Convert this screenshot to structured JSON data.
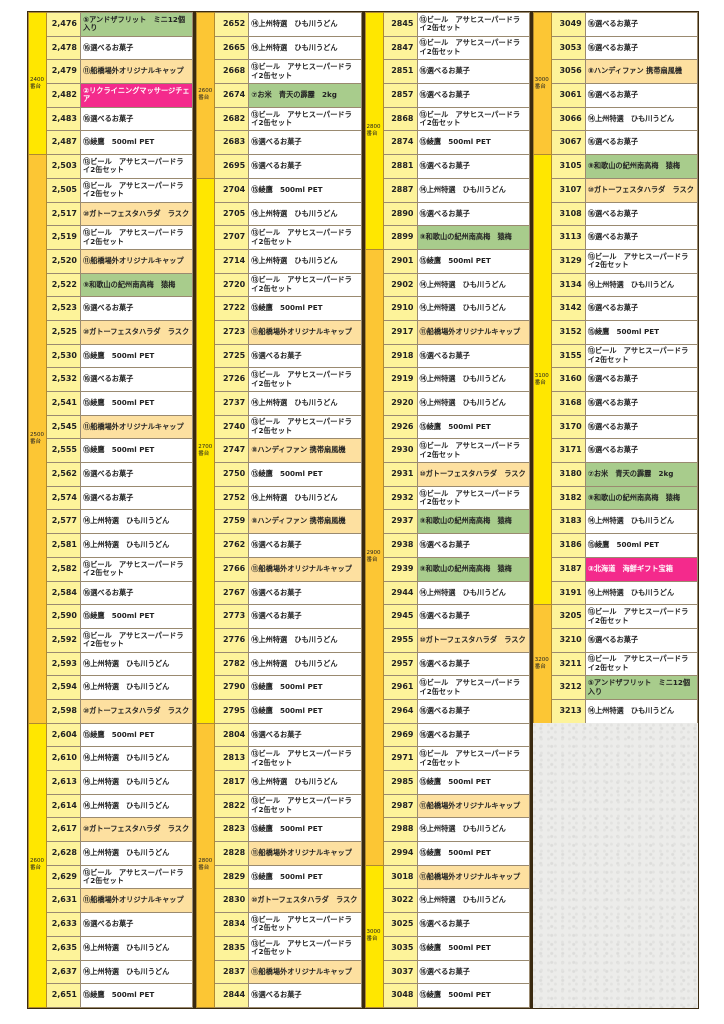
{
  "colors": {
    "white": "#ffffff",
    "orange": "#fde0a0",
    "green": "#a8cc8c",
    "pink": "#f42a8c",
    "group_yellow": "#ffe700",
    "group_orange": "#fcc634",
    "number_cell": "#fdf39a"
  },
  "prizes": {
    "F": {
      "text": "⑤アンドザフリット　ミニ12個入り",
      "color": "green"
    },
    "K": {
      "text": "⑯選べるお菓子",
      "color": "white"
    },
    "C": {
      "text": "⑪船橋場外オリジナルキャップ",
      "color": "orange"
    },
    "M": {
      "text": "②リクライニングマッサージチェア",
      "color": "pink"
    },
    "A": {
      "text": "⑮綾鷹　500ml PET",
      "color": "white"
    },
    "B": {
      "text": "⑬ビール　アサヒスーパードライ2缶セット",
      "color": "white"
    },
    "G": {
      "text": "⑩ガトーフェスタハラダ　ラスク",
      "color": "orange"
    },
    "W": {
      "text": "⑨和歌山の紀州南高梅　猿梅",
      "color": "green"
    },
    "U": {
      "text": "⑭上州特選　ひも川うどん",
      "color": "white"
    },
    "H": {
      "text": "⑧ハンディファン 携帯扇風機",
      "color": "orange"
    },
    "R": {
      "text": "⑦お米　青天の霹靂　2kg",
      "color": "green"
    },
    "S": {
      "text": "③北海道　海鮮ギフト宝箱",
      "color": "pink"
    }
  },
  "columns": [
    {
      "groups": [
        {
          "label": "2400番台",
          "color": "group_yellow",
          "rows": [
            [
              "2,476",
              "F"
            ],
            [
              "2,478",
              "K"
            ],
            [
              "2,479",
              "C"
            ],
            [
              "2,482",
              "M"
            ],
            [
              "2,483",
              "K"
            ],
            [
              "2,487",
              "A"
            ]
          ]
        },
        {
          "label": "2500番台",
          "color": "group_orange",
          "rows": [
            [
              "2,503",
              "B"
            ],
            [
              "2,505",
              "B"
            ],
            [
              "2,517",
              "G"
            ],
            [
              "2,519",
              "B"
            ],
            [
              "2,520",
              "C"
            ],
            [
              "2,522",
              "W"
            ],
            [
              "2,523",
              "K"
            ],
            [
              "2,525",
              "G"
            ],
            [
              "2,530",
              "A"
            ],
            [
              "2,532",
              "K"
            ],
            [
              "2,541",
              "A"
            ],
            [
              "2,545",
              "C"
            ],
            [
              "2,555",
              "A"
            ],
            [
              "2,562",
              "K"
            ],
            [
              "2,574",
              "K"
            ],
            [
              "2,577",
              "U"
            ],
            [
              "2,581",
              "U"
            ],
            [
              "2,582",
              "B"
            ],
            [
              "2,584",
              "K"
            ],
            [
              "2,590",
              "A"
            ],
            [
              "2,592",
              "B"
            ],
            [
              "2,593",
              "U"
            ],
            [
              "2,594",
              "U"
            ],
            [
              "2,598",
              "G"
            ]
          ]
        },
        {
          "label": "2600番台",
          "color": "group_yellow",
          "rows": [
            [
              "2,604",
              "A"
            ],
            [
              "2,610",
              "U"
            ],
            [
              "2,613",
              "U"
            ],
            [
              "2,614",
              "U"
            ],
            [
              "2,617",
              "G"
            ],
            [
              "2,628",
              "U"
            ],
            [
              "2,629",
              "B"
            ],
            [
              "2,631",
              "C"
            ],
            [
              "2,633",
              "K"
            ],
            [
              "2,635",
              "U"
            ],
            [
              "2,637",
              "U"
            ],
            [
              "2,651",
              "A"
            ]
          ]
        }
      ]
    },
    {
      "groups": [
        {
          "label": "2600番台",
          "color": "group_orange",
          "rows": [
            [
              "2652",
              "U"
            ],
            [
              "2665",
              "U"
            ],
            [
              "2668",
              "B"
            ],
            [
              "2674",
              "R"
            ],
            [
              "2682",
              "B"
            ],
            [
              "2683",
              "K"
            ],
            [
              "2695",
              "K"
            ]
          ]
        },
        {
          "label": "2700番台",
          "color": "group_yellow",
          "rows": [
            [
              "2704",
              "A"
            ],
            [
              "2705",
              "U"
            ],
            [
              "2707",
              "B"
            ],
            [
              "2714",
              "U"
            ],
            [
              "2720",
              "B"
            ],
            [
              "2722",
              "A"
            ],
            [
              "2723",
              "C"
            ],
            [
              "2725",
              "K"
            ],
            [
              "2726",
              "B"
            ],
            [
              "2737",
              "U"
            ],
            [
              "2740",
              "B"
            ],
            [
              "2747",
              "H"
            ],
            [
              "2750",
              "A"
            ],
            [
              "2752",
              "U"
            ],
            [
              "2759",
              "H"
            ],
            [
              "2762",
              "K"
            ],
            [
              "2766",
              "C"
            ],
            [
              "2767",
              "K"
            ],
            [
              "2773",
              "K"
            ],
            [
              "2776",
              "U"
            ],
            [
              "2782",
              "U"
            ],
            [
              "2790",
              "A"
            ],
            [
              "2795",
              "A"
            ]
          ]
        },
        {
          "label": "2800番台",
          "color": "group_orange",
          "rows": [
            [
              "2804",
              "K"
            ],
            [
              "2813",
              "B"
            ],
            [
              "2817",
              "U"
            ],
            [
              "2822",
              "B"
            ],
            [
              "2823",
              "A"
            ],
            [
              "2828",
              "C"
            ],
            [
              "2829",
              "A"
            ],
            [
              "2830",
              "G"
            ],
            [
              "2834",
              "B"
            ],
            [
              "2835",
              "B"
            ],
            [
              "2837",
              "C"
            ],
            [
              "2844",
              "K"
            ]
          ]
        }
      ]
    },
    {
      "groups": [
        {
          "label": "2800番台",
          "color": "group_yellow",
          "rows": [
            [
              "2845",
              "B"
            ],
            [
              "2847",
              "B"
            ],
            [
              "2851",
              "K"
            ],
            [
              "2857",
              "K"
            ],
            [
              "2868",
              "B"
            ],
            [
              "2874",
              "A"
            ],
            [
              "2881",
              "K"
            ],
            [
              "2887",
              "U"
            ],
            [
              "2890",
              "K"
            ],
            [
              "2899",
              "W"
            ]
          ]
        },
        {
          "label": "2900番台",
          "color": "group_orange",
          "rows": [
            [
              "2901",
              "A"
            ],
            [
              "2902",
              "U"
            ],
            [
              "2910",
              "U"
            ],
            [
              "2917",
              "C"
            ],
            [
              "2918",
              "K"
            ],
            [
              "2919",
              "U"
            ],
            [
              "2920",
              "U"
            ],
            [
              "2926",
              "A"
            ],
            [
              "2930",
              "B"
            ],
            [
              "2931",
              "G"
            ],
            [
              "2932",
              "B"
            ],
            [
              "2937",
              "W"
            ],
            [
              "2938",
              "K"
            ],
            [
              "2939",
              "W"
            ],
            [
              "2944",
              "U"
            ],
            [
              "2945",
              "K"
            ],
            [
              "2955",
              "G"
            ],
            [
              "2957",
              "K"
            ],
            [
              "2961",
              "B"
            ],
            [
              "2964",
              "K"
            ],
            [
              "2969",
              "K"
            ],
            [
              "2971",
              "B"
            ],
            [
              "2985",
              "A"
            ],
            [
              "2987",
              "C"
            ],
            [
              "2988",
              "U"
            ],
            [
              "2994",
              "A"
            ]
          ]
        },
        {
          "label": "3000番台",
          "color": "group_yellow",
          "rows": [
            [
              "3018",
              "C"
            ],
            [
              "3022",
              "U"
            ],
            [
              "3025",
              "K"
            ],
            [
              "3035",
              "A"
            ],
            [
              "3037",
              "K"
            ],
            [
              "3048",
              "A"
            ]
          ]
        }
      ]
    },
    {
      "groups": [
        {
          "label": "3000番台",
          "color": "group_orange",
          "rows": [
            [
              "3049",
              "K"
            ],
            [
              "3053",
              "K"
            ],
            [
              "3056",
              "H"
            ],
            [
              "3061",
              "K"
            ],
            [
              "3066",
              "U"
            ],
            [
              "3067",
              "K"
            ]
          ]
        },
        {
          "label": "3100番台",
          "color": "group_yellow",
          "rows": [
            [
              "3105",
              "W"
            ],
            [
              "3107",
              "G"
            ],
            [
              "3108",
              "K"
            ],
            [
              "3113",
              "K"
            ],
            [
              "3129",
              "B"
            ],
            [
              "3134",
              "U"
            ],
            [
              "3142",
              "K"
            ],
            [
              "3152",
              "A"
            ],
            [
              "3155",
              "B"
            ],
            [
              "3160",
              "K"
            ],
            [
              "3168",
              "K"
            ],
            [
              "3170",
              "K"
            ],
            [
              "3171",
              "K"
            ],
            [
              "3180",
              "R"
            ],
            [
              "3182",
              "W"
            ],
            [
              "3183",
              "U"
            ],
            [
              "3186",
              "A"
            ],
            [
              "3187",
              "S"
            ],
            [
              "3191",
              "U"
            ]
          ]
        },
        {
          "label": "3200番台",
          "color": "group_orange",
          "rows": [
            [
              "3205",
              "B"
            ],
            [
              "3210",
              "K"
            ],
            [
              "3211",
              "B"
            ],
            [
              "3212",
              "F"
            ],
            [
              "3213",
              "U"
            ]
          ]
        }
      ]
    }
  ]
}
